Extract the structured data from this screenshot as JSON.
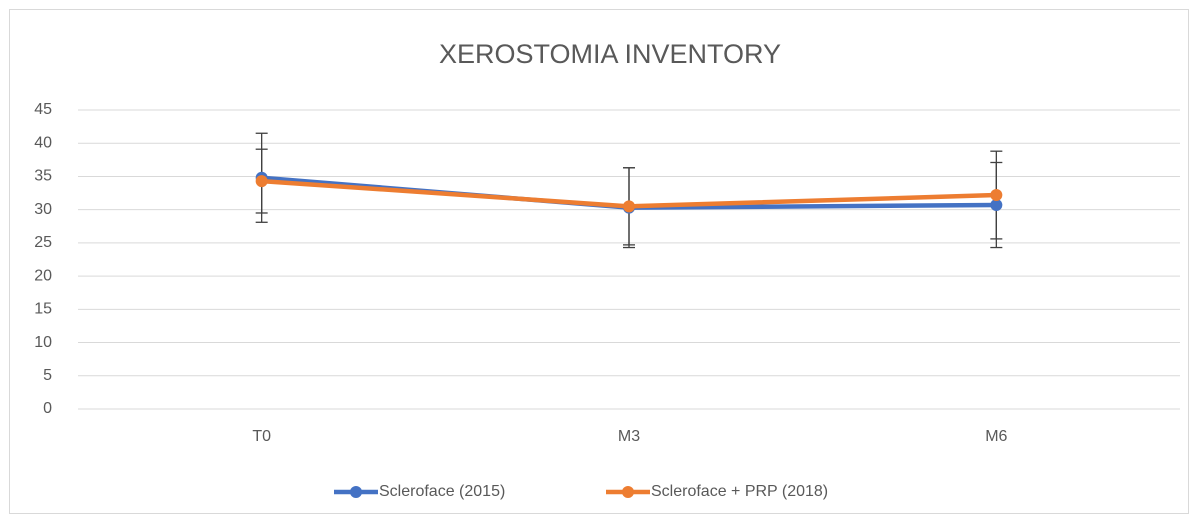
{
  "chart_data": {
    "type": "line",
    "title": "XEROSTOMIA INVENTORY",
    "categories": [
      "T0",
      "M3",
      "M6"
    ],
    "series": [
      {
        "name": "Scleroface (2015)",
        "color": "#4472c4",
        "values": [
          34.8,
          30.3,
          30.7
        ],
        "errors": [
          6.7,
          6.0,
          6.4
        ]
      },
      {
        "name": "Scleroface + PRP (2018)",
        "color": "#ed7d31",
        "values": [
          34.3,
          30.5,
          32.2
        ],
        "errors": [
          4.8,
          5.8,
          6.6
        ]
      }
    ],
    "ylim": [
      0,
      45
    ],
    "yticks": [
      0,
      5,
      10,
      15,
      20,
      25,
      30,
      35,
      40,
      45
    ],
    "grid": true,
    "legend": "bottom"
  }
}
